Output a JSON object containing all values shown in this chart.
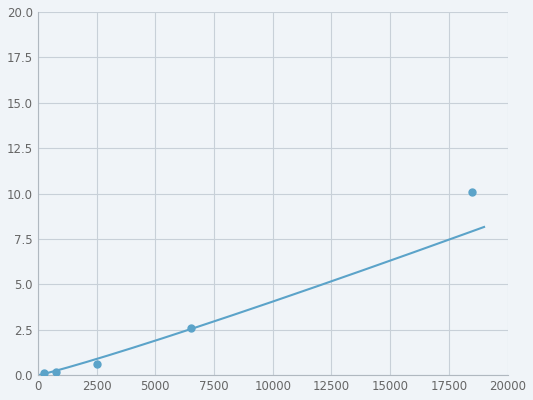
{
  "x": [
    250,
    750,
    2500,
    6500,
    18500
  ],
  "y": [
    0.1,
    0.2,
    0.6,
    2.6,
    10.1
  ],
  "line_color": "#5ba3c9",
  "marker_color": "#5ba3c9",
  "marker_size": 5,
  "line_width": 1.5,
  "xlim": [
    0,
    20000
  ],
  "ylim": [
    0,
    20.0
  ],
  "xticks": [
    0,
    2500,
    5000,
    7500,
    10000,
    12500,
    15000,
    17500,
    20000
  ],
  "yticks": [
    0.0,
    2.5,
    5.0,
    7.5,
    10.0,
    12.5,
    15.0,
    17.5,
    20.0
  ],
  "grid_color": "#c8d0d8",
  "figure_background": "#f0f4f8",
  "plot_background": "#f0f4f8"
}
